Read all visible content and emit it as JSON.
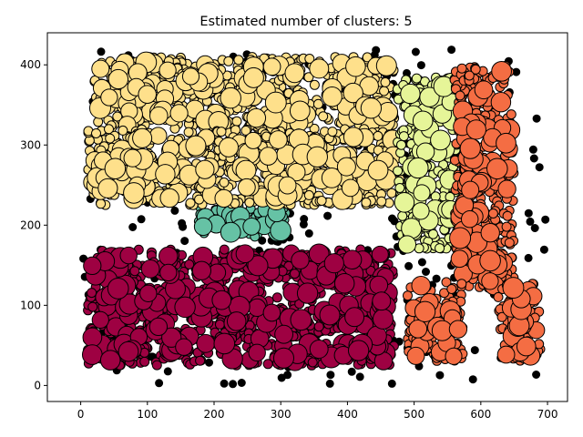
{
  "chart_data": {
    "type": "scatter",
    "title": "Estimated number of clusters: 5",
    "xlabel": "",
    "ylabel": "",
    "xlim": [
      -50,
      730
    ],
    "ylim": [
      -20,
      440
    ],
    "x_ticks": [
      0,
      100,
      200,
      300,
      400,
      500,
      600,
      700
    ],
    "y_ticks": [
      0,
      100,
      200,
      300,
      400
    ],
    "x_tick_labels": [
      "0",
      "100",
      "200",
      "300",
      "400",
      "500",
      "600",
      "700"
    ],
    "y_tick_labels": [
      "0",
      "100",
      "200",
      "300",
      "400"
    ],
    "grid": false,
    "legend": false,
    "marker_edge_color": "#000000",
    "noise_color": "#000000",
    "clusters": [
      {
        "color": "#9e0142",
        "regions": [
          {
            "x": [
              10,
              470
            ],
            "y": [
              25,
              170
            ]
          }
        ]
      },
      {
        "color": "#66c2a5",
        "regions": [
          {
            "x": [
              175,
              310
            ],
            "y": [
              185,
              225
            ]
          }
        ]
      },
      {
        "color": "#fee08b",
        "regions": [
          {
            "x": [
              20,
              470
            ],
            "y": [
              320,
              410
            ]
          },
          {
            "x": [
              10,
              480
            ],
            "y": [
              225,
              320
            ]
          }
        ]
      },
      {
        "color": "#e6f598",
        "regions": [
          {
            "x": [
              475,
              565
            ],
            "y": [
              170,
              385
            ]
          }
        ]
      },
      {
        "color": "#f46d43",
        "regions": [
          {
            "x": [
              560,
              650
            ],
            "y": [
              120,
              400
            ]
          },
          {
            "x": [
              490,
              575
            ],
            "y": [
              30,
              130
            ]
          },
          {
            "x": [
              625,
              690
            ],
            "y": [
              30,
              130
            ]
          }
        ]
      }
    ],
    "noise_region": {
      "x": [
        0,
        700
      ],
      "y": [
        0,
        420
      ]
    }
  }
}
